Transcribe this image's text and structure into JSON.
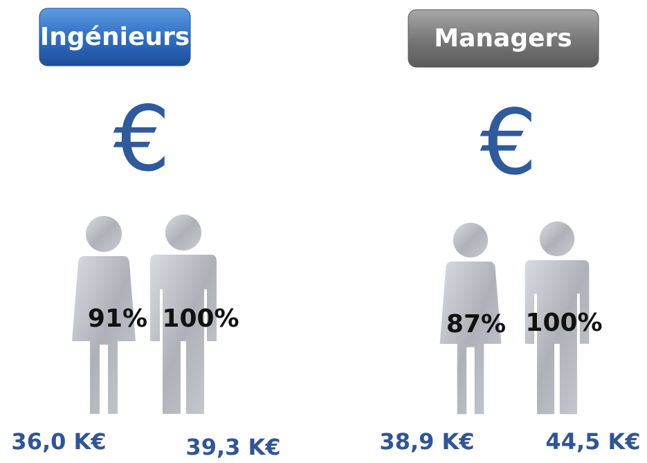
{
  "panels": [
    {
      "title": "Ingénieurs",
      "currency_symbol": "€",
      "women": {
        "ratio": "91%",
        "salary": "36,0 K€"
      },
      "men": {
        "ratio": "100%",
        "salary": "39,3 K€"
      }
    },
    {
      "title": "Managers",
      "currency_symbol": "€",
      "women": {
        "ratio": "87%",
        "salary": "38,9 K€"
      },
      "men": {
        "ratio": "100%",
        "salary": "44,5 K€"
      }
    }
  ]
}
